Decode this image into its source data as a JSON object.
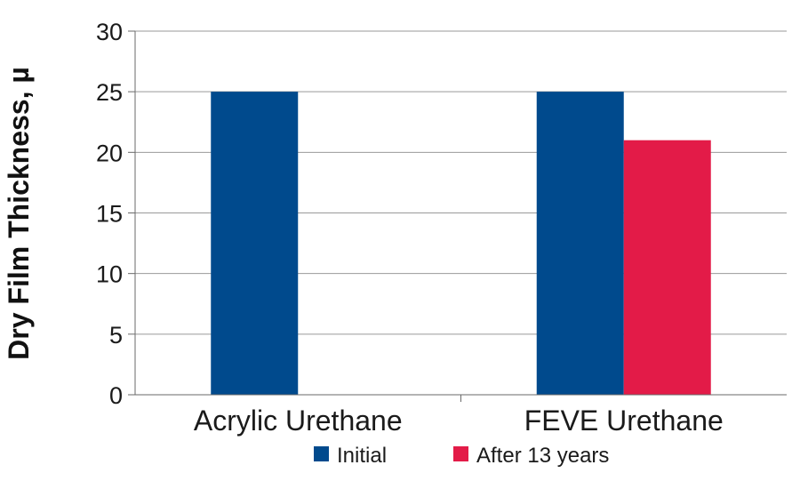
{
  "chart_data": {
    "type": "bar",
    "categories": [
      "Acrylic Urethane",
      "FEVE Urethane"
    ],
    "series": [
      {
        "name": "Initial",
        "values": [
          25,
          25
        ],
        "color": "#004a8d"
      },
      {
        "name": "After 13 years",
        "values": [
          null,
          21
        ],
        "color": "#e31b48"
      }
    ],
    "ylabel": "Dry Film Thickness, µ",
    "xlabel": "",
    "ylim": [
      0,
      30
    ],
    "yticks": [
      0,
      5,
      10,
      15,
      20,
      25,
      30
    ],
    "grid": true,
    "legend_position": "bottom"
  }
}
